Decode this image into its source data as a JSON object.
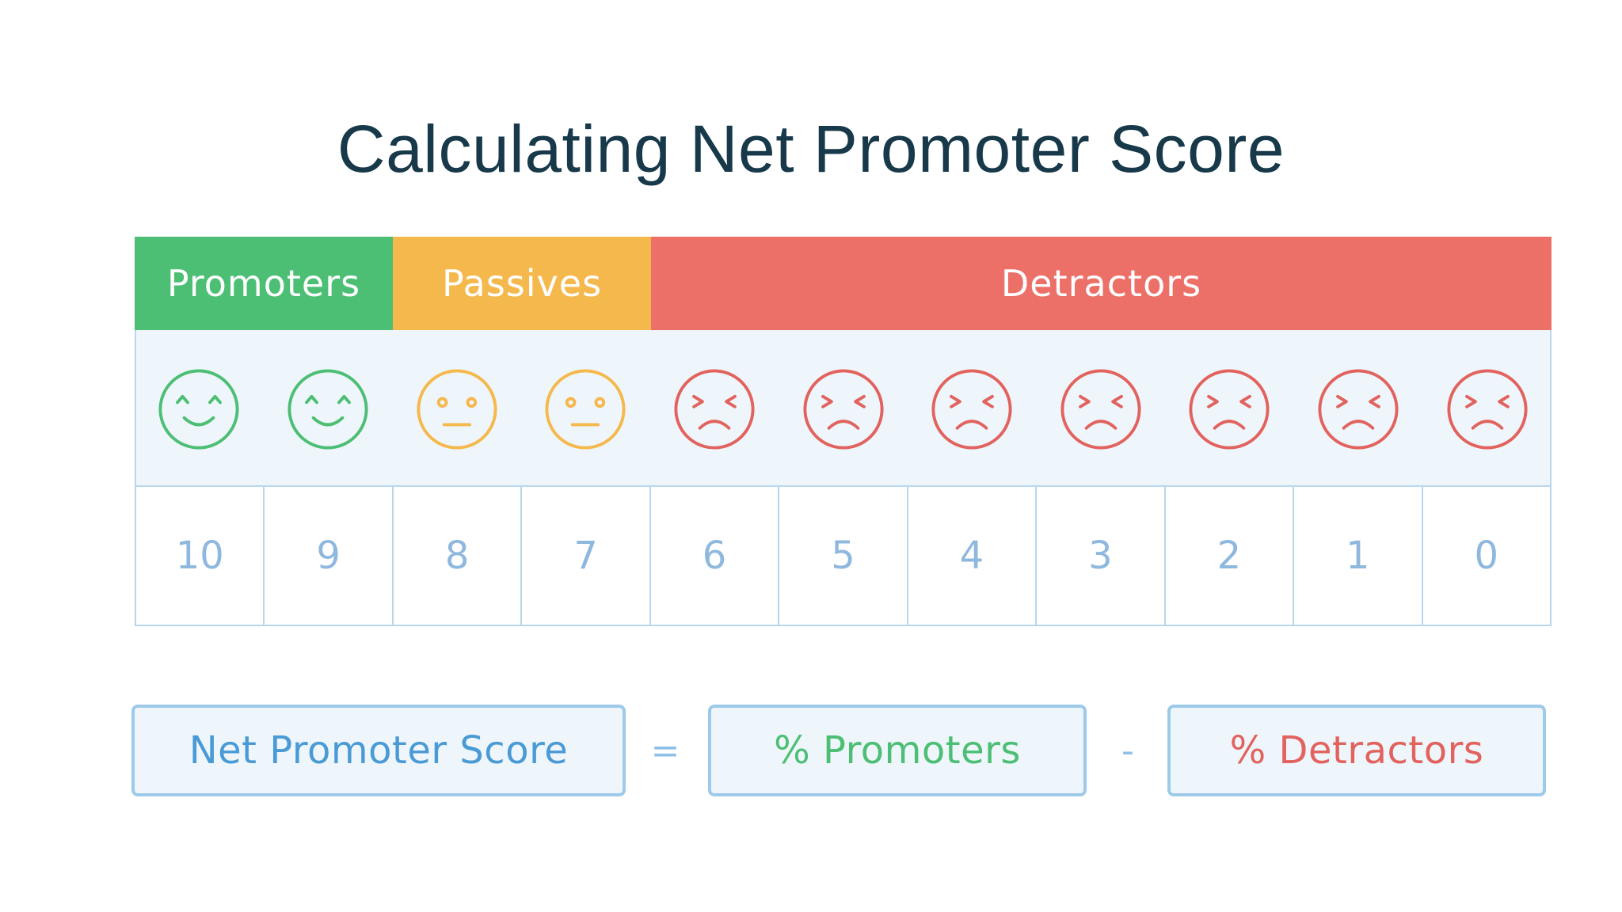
{
  "title": "Calculating Net Promoter Score",
  "categories": [
    {
      "label": "Promoters",
      "color": "#4cbf74",
      "scores": [
        10,
        9
      ]
    },
    {
      "label": "Passives",
      "color": "#f5b84c",
      "scores": [
        8,
        7
      ]
    },
    {
      "label": "Detractors",
      "color": "#ec7068",
      "scores": [
        6,
        5,
        4,
        3,
        2,
        1,
        0
      ]
    }
  ],
  "faces": [
    {
      "icon": "happy-face-icon",
      "color": "#4cbf74"
    },
    {
      "icon": "happy-face-icon",
      "color": "#4cbf74"
    },
    {
      "icon": "neutral-face-icon",
      "color": "#f5b84c"
    },
    {
      "icon": "neutral-face-icon",
      "color": "#f5b84c"
    },
    {
      "icon": "sad-face-icon",
      "color": "#e2635e"
    },
    {
      "icon": "sad-face-icon",
      "color": "#e2635e"
    },
    {
      "icon": "sad-face-icon",
      "color": "#e2635e"
    },
    {
      "icon": "sad-face-icon",
      "color": "#e2635e"
    },
    {
      "icon": "sad-face-icon",
      "color": "#e2635e"
    },
    {
      "icon": "sad-face-icon",
      "color": "#e2635e"
    },
    {
      "icon": "sad-face-icon",
      "color": "#e2635e"
    }
  ],
  "scores": [
    "10",
    "9",
    "8",
    "7",
    "6",
    "5",
    "4",
    "3",
    "2",
    "1",
    "0"
  ],
  "formula": {
    "result": "Net Promoter Score",
    "equals": "=",
    "promoters": "% Promoters",
    "minus": "-",
    "detractors": "% Detractors",
    "result_color": "#4a9ad6",
    "promoters_color": "#4cbf74",
    "detractors_color": "#e2635e"
  }
}
